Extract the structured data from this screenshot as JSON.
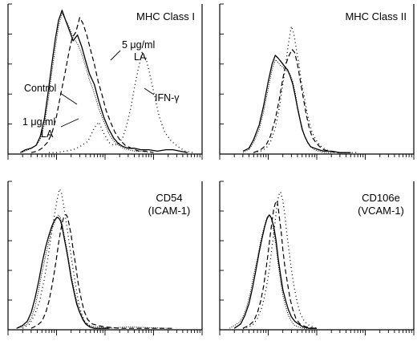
{
  "chart_data": [
    {
      "type": "line",
      "panel": "top-left",
      "title": "MHC Class I",
      "xlabel": "",
      "ylabel": "",
      "xscale": "log",
      "xlim": [
        1,
        10000
      ],
      "ylim": [
        0,
        100
      ],
      "grid": false,
      "annotations": [
        "Control",
        "1 μg/ml",
        "LA",
        "5 μg/ml",
        "LA",
        "IFN-γ"
      ],
      "series": [
        {
          "style": "solid",
          "x": [
            1.8,
            2.3,
            3,
            3.8,
            4.6,
            5.6,
            6.8,
            8,
            9.5,
            11,
            13,
            15,
            18,
            22,
            27,
            33,
            40,
            48,
            60,
            75,
            95,
            120,
            150,
            190,
            240,
            300,
            400,
            550,
            800,
            1200,
            1800,
            2500,
            3500,
            5000
          ],
          "y": [
            1,
            3,
            4,
            6,
            12,
            24,
            44,
            62,
            80,
            92,
            99,
            93,
            86,
            78,
            82,
            74,
            64,
            55,
            48,
            36,
            25,
            17,
            11,
            7,
            5,
            4,
            4,
            3,
            3,
            2,
            3,
            3,
            2,
            1
          ]
        },
        {
          "style": "fine-dotted",
          "x": [
            1.8,
            2.3,
            3,
            3.8,
            4.6,
            5.6,
            6.8,
            8,
            9.5,
            11,
            13,
            15,
            18,
            22,
            27,
            33,
            40,
            48,
            60,
            75,
            95,
            120,
            150,
            190,
            240,
            300,
            400,
            550,
            800
          ],
          "y": [
            1,
            2,
            4,
            6,
            10,
            20,
            38,
            56,
            74,
            88,
            97,
            93,
            88,
            80,
            76,
            69,
            60,
            51,
            42,
            31,
            22,
            14,
            9,
            6,
            4,
            3,
            2,
            2,
            1
          ]
        },
        {
          "style": "dashed",
          "x": [
            3,
            4,
            5,
            6.5,
            8,
            10,
            12,
            15,
            18,
            21,
            25,
            30,
            35,
            42,
            50,
            60,
            72,
            88,
            105,
            130,
            160,
            200,
            260,
            350,
            500,
            700,
            1000
          ],
          "y": [
            1,
            2,
            4,
            8,
            14,
            26,
            40,
            56,
            70,
            80,
            84,
            94,
            90,
            82,
            72,
            62,
            50,
            40,
            30,
            22,
            15,
            10,
            6,
            4,
            2,
            2,
            1
          ]
        },
        {
          "style": "coarse-dotted",
          "x": [
            7,
            10,
            15,
            22,
            30,
            45,
            60,
            75,
            95,
            120,
            150,
            190,
            230,
            280,
            340,
            400,
            480,
            580,
            700,
            850,
            1050,
            1300,
            1700,
            2300,
            3200,
            4500,
            6500
          ],
          "y": [
            1,
            1,
            2,
            3,
            5,
            9,
            18,
            22,
            14,
            8,
            6,
            7,
            11,
            20,
            32,
            45,
            58,
            70,
            66,
            54,
            40,
            26,
            15,
            9,
            5,
            2,
            1
          ]
        }
      ]
    },
    {
      "type": "line",
      "panel": "top-right",
      "title": "MHC Class II",
      "xlabel": "",
      "ylabel": "",
      "xscale": "log",
      "xlim": [
        1,
        10000
      ],
      "ylim": [
        0,
        100
      ],
      "grid": false,
      "series": [
        {
          "style": "solid",
          "x": [
            3,
            4,
            5,
            6.5,
            8,
            10,
            12,
            14,
            16,
            18,
            20,
            22,
            25,
            28,
            32,
            36,
            40,
            45,
            50,
            57,
            65,
            75,
            90,
            110,
            140,
            200,
            300,
            500
          ],
          "y": [
            2,
            4,
            10,
            20,
            33,
            50,
            62,
            68,
            66,
            64,
            62,
            60,
            58,
            54,
            48,
            40,
            32,
            24,
            17,
            12,
            8,
            5,
            4,
            3,
            2,
            2,
            1,
            1
          ]
        },
        {
          "style": "fine-dotted",
          "x": [
            3,
            4,
            5,
            6.5,
            8,
            10,
            12,
            14,
            16,
            18,
            20,
            22,
            25,
            28,
            32,
            36,
            40,
            45,
            50,
            57,
            65,
            75,
            90,
            110,
            140,
            200
          ],
          "y": [
            1,
            3,
            8,
            17,
            29,
            45,
            58,
            65,
            63,
            61,
            60,
            58,
            57,
            55,
            50,
            42,
            33,
            25,
            18,
            12,
            8,
            5,
            3,
            2,
            1,
            1
          ]
        },
        {
          "style": "dashed",
          "x": [
            5,
            7,
            9,
            11,
            14,
            17,
            20,
            23,
            27,
            31,
            35,
            40,
            45,
            52,
            60,
            70,
            80,
            95,
            115,
            140,
            180,
            250,
            400
          ],
          "y": [
            1,
            3,
            6,
            12,
            24,
            38,
            52,
            62,
            68,
            72,
            70,
            62,
            52,
            40,
            28,
            18,
            12,
            8,
            5,
            3,
            2,
            1,
            1
          ]
        },
        {
          "style": "coarse-dotted",
          "x": [
            5,
            7,
            9,
            11,
            14,
            17,
            20,
            23,
            26,
            30,
            34,
            38,
            43,
            48,
            55,
            62,
            70,
            80,
            95,
            115,
            140,
            180,
            250,
            400,
            700
          ],
          "y": [
            1,
            2,
            4,
            8,
            18,
            32,
            48,
            62,
            76,
            88,
            82,
            72,
            62,
            50,
            40,
            30,
            22,
            15,
            10,
            6,
            4,
            2,
            1,
            1,
            1
          ]
        }
      ]
    },
    {
      "type": "line",
      "panel": "bottom-left",
      "title": "CD54",
      "subtitle": "(ICAM-1)",
      "xlabel": "",
      "ylabel": "",
      "xscale": "log",
      "xlim": [
        1,
        10000
      ],
      "ylim": [
        0,
        100
      ],
      "grid": false,
      "series": [
        {
          "style": "solid",
          "x": [
            1.5,
            2,
            2.5,
            3,
            3.6,
            4.3,
            5,
            6,
            7,
            8,
            9,
            10,
            11,
            12,
            13,
            14,
            16,
            18,
            20,
            23,
            26,
            30,
            35,
            40,
            48,
            60,
            80,
            120
          ],
          "y": [
            1,
            3,
            6,
            12,
            22,
            34,
            46,
            58,
            66,
            72,
            76,
            78,
            78,
            76,
            72,
            66,
            56,
            46,
            36,
            26,
            18,
            12,
            7,
            4,
            2,
            1,
            1,
            1
          ]
        },
        {
          "style": "fine-dotted",
          "x": [
            1.5,
            2,
            2.5,
            3,
            3.6,
            4.3,
            5,
            6,
            7,
            8,
            9,
            10,
            11,
            12,
            13,
            14,
            16,
            18,
            20,
            23,
            26,
            30,
            35,
            40,
            48,
            60,
            80,
            120,
            300,
            2000
          ],
          "y": [
            1,
            2,
            4,
            8,
            16,
            28,
            40,
            52,
            62,
            70,
            74,
            78,
            80,
            78,
            74,
            68,
            58,
            48,
            38,
            28,
            20,
            13,
            8,
            5,
            3,
            2,
            2,
            1,
            2,
            1
          ]
        },
        {
          "style": "dashed",
          "x": [
            3,
            4,
            5,
            6,
            7,
            8,
            9,
            10,
            11,
            12,
            13,
            14,
            15,
            16,
            17,
            18,
            20,
            22,
            25,
            28,
            32,
            37,
            44,
            55,
            70,
            100,
            200,
            600,
            2500
          ],
          "y": [
            1,
            3,
            6,
            12,
            20,
            30,
            40,
            50,
            60,
            68,
            74,
            78,
            80,
            80,
            78,
            74,
            66,
            56,
            44,
            32,
            22,
            13,
            7,
            4,
            3,
            2,
            1,
            1,
            1
          ]
        },
        {
          "style": "coarse-dotted",
          "x": [
            2,
            2.8,
            3.5,
            4.5,
            5.5,
            6.5,
            7.5,
            8.5,
            9.5,
            10.5,
            11.5,
            12.5,
            13.5,
            15,
            17,
            19,
            22,
            25,
            28,
            32,
            38,
            45,
            60,
            90
          ],
          "y": [
            1,
            4,
            10,
            20,
            34,
            48,
            62,
            74,
            84,
            92,
            98,
            96,
            90,
            80,
            68,
            56,
            42,
            30,
            20,
            12,
            6,
            3,
            1,
            1
          ]
        }
      ]
    },
    {
      "type": "line",
      "panel": "bottom-right",
      "title": "CD106e",
      "subtitle": "(VCAM-1)",
      "xlabel": "",
      "ylabel": "",
      "xscale": "log",
      "xlim": [
        1,
        10000
      ],
      "ylim": [
        0,
        100
      ],
      "grid": false,
      "series": [
        {
          "style": "solid",
          "x": [
            2,
            2.7,
            3.3,
            4,
            4.8,
            5.6,
            6.5,
            7.5,
            8.5,
            9.5,
            10.5,
            11.5,
            13,
            14.5,
            16,
            18,
            20,
            23,
            26,
            30,
            35,
            42,
            52,
            70,
            100
          ],
          "y": [
            1,
            4,
            10,
            18,
            30,
            42,
            54,
            64,
            72,
            78,
            80,
            78,
            72,
            62,
            50,
            38,
            28,
            20,
            14,
            9,
            6,
            4,
            2,
            1,
            1
          ]
        },
        {
          "style": "fine-dotted",
          "x": [
            1.6,
            2,
            2.5,
            3,
            3.6,
            4.3,
            5,
            6,
            7,
            8,
            9,
            10,
            11,
            12,
            13,
            14.5,
            16,
            18,
            20,
            23,
            26,
            30,
            35,
            42,
            52,
            70
          ],
          "y": [
            1,
            3,
            5,
            9,
            16,
            26,
            38,
            50,
            62,
            70,
            76,
            78,
            80,
            76,
            68,
            58,
            46,
            34,
            24,
            16,
            10,
            6,
            3,
            2,
            1,
            1
          ]
        },
        {
          "style": "dashed",
          "x": [
            3,
            4,
            5,
            6,
            7,
            8,
            9,
            10,
            11,
            12,
            13,
            14,
            15,
            16,
            17,
            18.5,
            20,
            22,
            25,
            28,
            32,
            37,
            45,
            60,
            90
          ],
          "y": [
            1,
            3,
            6,
            12,
            20,
            30,
            42,
            54,
            66,
            76,
            84,
            88,
            90,
            86,
            78,
            68,
            56,
            44,
            32,
            22,
            14,
            8,
            4,
            2,
            1
          ]
        },
        {
          "style": "coarse-dotted",
          "x": [
            3,
            4,
            5,
            6,
            7.5,
            9,
            10.5,
            12,
            13.5,
            15,
            16.5,
            18,
            20,
            22,
            24,
            27,
            30,
            34,
            39,
            45,
            55,
            70,
            100
          ],
          "y": [
            1,
            2,
            4,
            8,
            16,
            28,
            42,
            58,
            72,
            86,
            94,
            96,
            90,
            80,
            68,
            54,
            42,
            30,
            20,
            12,
            6,
            3,
            1
          ]
        }
      ]
    }
  ]
}
